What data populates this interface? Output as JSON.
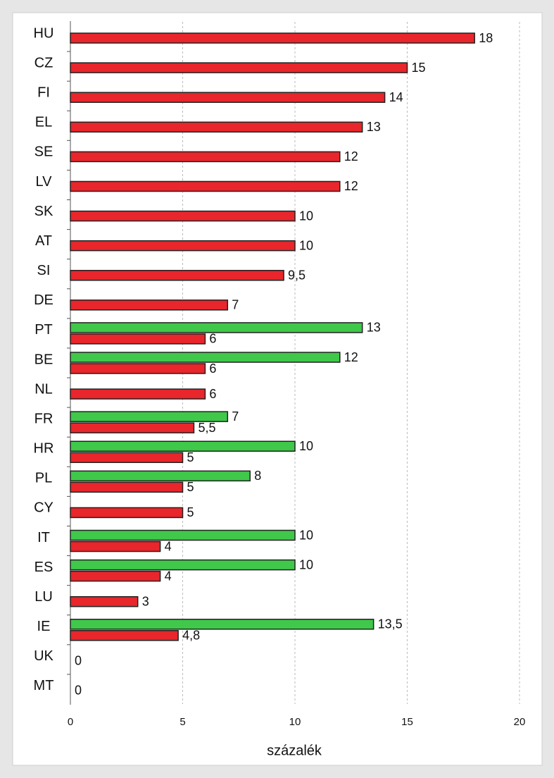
{
  "chart_data": {
    "type": "bar",
    "orientation": "horizontal",
    "categories": [
      "HU",
      "CZ",
      "FI",
      "EL",
      "SE",
      "LV",
      "SK",
      "AT",
      "SI",
      "DE",
      "PT",
      "BE",
      "NL",
      "FR",
      "HR",
      "PL",
      "CY",
      "IT",
      "ES",
      "LU",
      "IE",
      "UK",
      "MT"
    ],
    "series": [
      {
        "color": "#e8262b",
        "values": [
          18,
          15,
          14,
          13,
          12,
          12,
          10,
          10,
          9.5,
          7,
          6,
          6,
          6,
          5.5,
          5,
          5,
          5,
          4,
          4,
          3,
          4.8,
          0,
          0
        ],
        "value_labels": [
          "18",
          "15",
          "14",
          "13",
          "12",
          "12",
          "10",
          "10",
          "9,5",
          "7",
          "6",
          "6",
          "6",
          "5,5",
          "5",
          "5",
          "5",
          "4",
          "4",
          "3",
          "4,8",
          "0",
          "0"
        ]
      },
      {
        "color": "#3fc84a",
        "values": [
          null,
          null,
          null,
          null,
          null,
          null,
          null,
          null,
          null,
          null,
          13,
          12,
          null,
          7,
          10,
          8,
          null,
          10,
          10,
          null,
          13.5,
          null,
          null
        ],
        "value_labels": [
          null,
          null,
          null,
          null,
          null,
          null,
          null,
          null,
          null,
          null,
          "13",
          "12",
          null,
          "7",
          "10",
          "8",
          null,
          "10",
          "10",
          null,
          "13,5",
          null,
          null
        ]
      }
    ],
    "xlabel": "százalék",
    "xlim": [
      0,
      20
    ],
    "xticks": [
      0,
      5,
      10,
      15,
      20
    ],
    "grid": true
  }
}
